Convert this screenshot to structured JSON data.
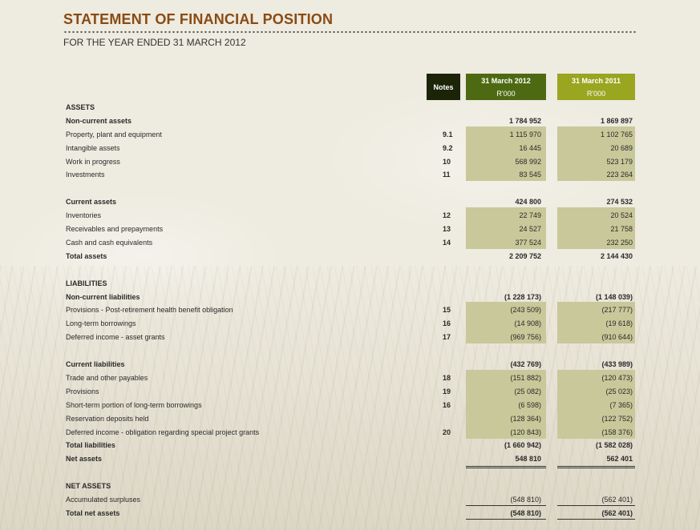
{
  "title": "STATEMENT OF FINANCIAL POSITION",
  "subtitle": "FOR THE YEAR ENDED 31 MARCH 2012",
  "columns": {
    "notes": "Notes",
    "y2012": "31 March 2012",
    "y2012_unit": "R'000",
    "y2011": "31 March 2011",
    "y2011_unit": "R'000"
  },
  "rows": [
    {
      "label": "ASSETS",
      "note": "",
      "v1": "",
      "v2": ""
    },
    {
      "label": "Non-current assets",
      "note": "",
      "v1": "1 784 952",
      "v2": "1 869 897"
    },
    {
      "label": "Property, plant and equipment",
      "note": "9.1",
      "v1": "1 115 970",
      "v2": "1 102 765"
    },
    {
      "label": "Intangible assets",
      "note": "9.2",
      "v1": "16 445",
      "v2": "20 689"
    },
    {
      "label": "Work in progress",
      "note": "10",
      "v1": "568 992",
      "v2": "523 179"
    },
    {
      "label": "Investments",
      "note": "11",
      "v1": "83 545",
      "v2": "223 264"
    },
    {
      "label": "Current assets",
      "note": "",
      "v1": "424 800",
      "v2": "274 532"
    },
    {
      "label": "Inventories",
      "note": "12",
      "v1": "22 749",
      "v2": "20 524"
    },
    {
      "label": "Receivables and prepayments",
      "note": "13",
      "v1": "24 527",
      "v2": "21 758"
    },
    {
      "label": "Cash and cash equivalents",
      "note": "14",
      "v1": "377 524",
      "v2": "232 250"
    },
    {
      "label": "Total assets",
      "note": "",
      "v1": "2 209 752",
      "v2": "2 144 430"
    },
    {
      "label": "LIABILITIES",
      "note": "",
      "v1": "",
      "v2": ""
    },
    {
      "label": "Non-current liabilities",
      "note": "",
      "v1": "(1 228 173)",
      "v2": "(1 148 039)"
    },
    {
      "label": "Provisions - Post-retirement health benefit obligation",
      "note": "15",
      "v1": "(243 509)",
      "v2": "(217 777)"
    },
    {
      "label": "Long-term borrowings",
      "note": "16",
      "v1": "(14 908)",
      "v2": "(19 618)"
    },
    {
      "label": "Deferred income - asset grants",
      "note": "17",
      "v1": "(969 756)",
      "v2": "(910 644)"
    },
    {
      "label": "Current liabilities",
      "note": "",
      "v1": "(432 769)",
      "v2": "(433 989)"
    },
    {
      "label": "Trade and other payables",
      "note": "18",
      "v1": "(151 882)",
      "v2": "(120 473)"
    },
    {
      "label": "Provisions",
      "note": "19",
      "v1": "(25 082)",
      "v2": "(25 023)"
    },
    {
      "label": "Short-term portion of long-term borrowings",
      "note": "16",
      "v1": "(6 598)",
      "v2": "(7 365)"
    },
    {
      "label": "Reservation deposits held",
      "note": "",
      "v1": "(128 364)",
      "v2": "(122 752)"
    },
    {
      "label": "Deferred income - obligation regarding special project grants",
      "note": "20",
      "v1": "(120 843)",
      "v2": "(158 376)"
    },
    {
      "label": "Total liabilities",
      "note": "",
      "v1": "(1 660 942)",
      "v2": "(1 582 028)"
    },
    {
      "label": "Net assets",
      "note": "",
      "v1": "548 810",
      "v2": "562 401"
    },
    {
      "label": "NET ASSETS",
      "note": "",
      "v1": "",
      "v2": ""
    },
    {
      "label": "Accumulated surpluses",
      "note": "",
      "v1": "(548 810)",
      "v2": "(562 401)"
    },
    {
      "label": "Total net assets",
      "note": "",
      "v1": "(548 810)",
      "v2": "(562 401)"
    }
  ]
}
